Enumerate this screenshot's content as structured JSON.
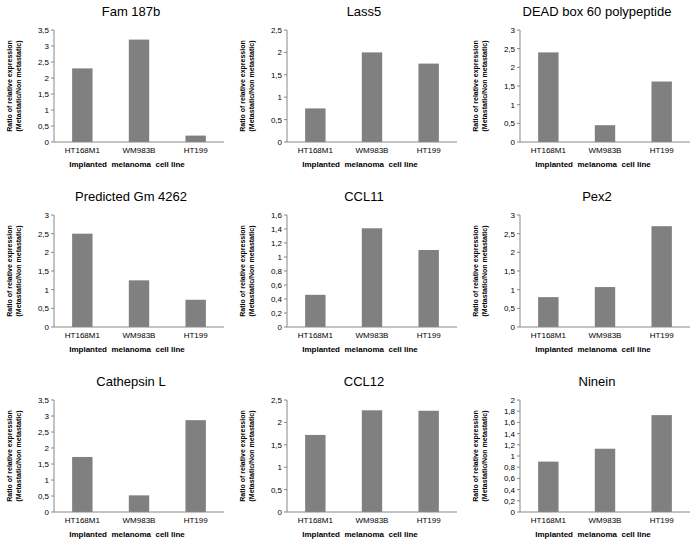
{
  "chart_data": [
    {
      "type": "bar",
      "title": "Fam 187b",
      "categories": [
        "HT168M1",
        "WM983B",
        "HT199"
      ],
      "values": [
        2.3,
        3.2,
        0.2
      ],
      "color": "#808080",
      "ylim": [
        0,
        3.5
      ],
      "yticks": [
        0,
        {
          "value": 0.5,
          "label": "0,5"
        },
        1,
        {
          "value": 1.5,
          "label": "1,5"
        },
        2,
        {
          "value": 2.5,
          "label": "2,5"
        },
        3,
        {
          "value": 3.5,
          "label": "3,5"
        }
      ],
      "grid": false,
      "x_label": "Implanted  melanoma  cell line",
      "y_label": "Ratio of relative expression\n(Metastatic/Non metastatic)"
    },
    {
      "type": "bar",
      "title": "Lass5",
      "categories": [
        "HT168M1",
        "WM983B",
        "HT199"
      ],
      "values": [
        0.75,
        2.0,
        1.75
      ],
      "color": "#808080",
      "ylim": [
        0,
        2.5
      ],
      "yticks": [
        0,
        {
          "value": 0.5,
          "label": "0,5"
        },
        1,
        {
          "value": 1.5,
          "label": "1,5"
        },
        2,
        {
          "value": 2.5,
          "label": "2,5"
        }
      ],
      "grid": false,
      "x_label": "Implanted  melanoma  cell line",
      "y_label": "Ratio of relative expression\n(Metastatic/Non metastatic)"
    },
    {
      "type": "bar",
      "title": "DEAD box 60 polypeptide",
      "categories": [
        "HT168M1",
        "WM983B",
        "HT199"
      ],
      "values": [
        2.4,
        0.45,
        1.62
      ],
      "color": "#808080",
      "ylim": [
        0,
        3
      ],
      "yticks": [
        0,
        {
          "value": 0.5,
          "label": "0,5"
        },
        1,
        {
          "value": 1.5,
          "label": "1,5"
        },
        2,
        {
          "value": 2.5,
          "label": "2,5"
        },
        3
      ],
      "grid": false,
      "x_label": "Implanted  melanoma  cell line",
      "y_label": "Ratio of relative expression\n(Metastatic/Non metastatic)"
    },
    {
      "type": "bar",
      "title": "Predicted Gm 4262",
      "categories": [
        "HT168M1",
        "WM983B",
        "HT199"
      ],
      "values": [
        2.5,
        1.25,
        0.73
      ],
      "color": "#808080",
      "ylim": [
        0,
        3
      ],
      "yticks": [
        0,
        {
          "value": 0.5,
          "label": "0,5"
        },
        1,
        {
          "value": 1.5,
          "label": "1,5"
        },
        2,
        {
          "value": 2.5,
          "label": "2,5"
        },
        3
      ],
      "grid": false,
      "x_label": "Implanted  melanoma  cell line",
      "y_label": "Ratio of relative expression\n(Metastatic/Non metastatic)"
    },
    {
      "type": "bar",
      "title": "CCL11",
      "categories": [
        "HT168M1",
        "WM983B",
        "HT199"
      ],
      "values": [
        0.46,
        1.41,
        1.1
      ],
      "color": "#808080",
      "ylim": [
        0,
        1.6
      ],
      "yticks": [
        0,
        {
          "value": 0.2,
          "label": "0,2"
        },
        {
          "value": 0.4,
          "label": "0,4"
        },
        {
          "value": 0.6,
          "label": "0,6"
        },
        {
          "value": 0.8,
          "label": "0,8"
        },
        1,
        {
          "value": 1.2,
          "label": "1,2"
        },
        {
          "value": 1.4,
          "label": "1,4"
        },
        {
          "value": 1.6,
          "label": "1,6"
        }
      ],
      "grid": false,
      "x_label": "Implanted  melanoma  cell line",
      "y_label": "Ratio of relative expression\n(Metastatic/Non metastatic)"
    },
    {
      "type": "bar",
      "title": "Pex2",
      "categories": [
        "HT168M1",
        "WM983B",
        "HT199"
      ],
      "values": [
        0.8,
        1.07,
        2.7
      ],
      "color": "#808080",
      "ylim": [
        0,
        3
      ],
      "yticks": [
        0,
        {
          "value": 0.5,
          "label": "0,5"
        },
        1,
        {
          "value": 1.5,
          "label": "1,5"
        },
        2,
        {
          "value": 2.5,
          "label": "2,5"
        },
        3
      ],
      "grid": false,
      "x_label": "Implanted  melanoma  cell line",
      "y_label": "Ratio of relative expression\n(Metastatic/Non metastatic)"
    },
    {
      "type": "bar",
      "title": "Cathepsin L",
      "categories": [
        "HT168M1",
        "WM983B",
        "HT199"
      ],
      "values": [
        1.72,
        0.52,
        2.87
      ],
      "color": "#808080",
      "ylim": [
        0,
        3.5
      ],
      "yticks": [
        0,
        {
          "value": 0.5,
          "label": "0,5"
        },
        1,
        {
          "value": 1.5,
          "label": "1,5"
        },
        2,
        {
          "value": 2.5,
          "label": "2,5"
        },
        3,
        {
          "value": 3.5,
          "label": "3,5"
        }
      ],
      "grid": false,
      "x_label": "Implanted  melanoma  cell line",
      "y_label": "Ratio of relative expression\n(Metastatic/Non metastatic)"
    },
    {
      "type": "bar",
      "title": "CCL12",
      "categories": [
        "HT168M1",
        "WM983B",
        "HT199"
      ],
      "values": [
        1.72,
        2.27,
        2.26
      ],
      "color": "#808080",
      "ylim": [
        0,
        2.5
      ],
      "yticks": [
        0,
        {
          "value": 0.5,
          "label": "0,5"
        },
        1,
        {
          "value": 1.5,
          "label": "1,5"
        },
        2,
        {
          "value": 2.5,
          "label": "2,5"
        }
      ],
      "grid": false,
      "x_label": "Implanted  melanoma  cell line",
      "y_label": "Ratio of relative expression\n(Metastatic/Non metastatic)"
    },
    {
      "type": "bar",
      "title": "Ninein",
      "categories": [
        "HT168M1",
        "WM983B",
        "HT199"
      ],
      "values": [
        0.9,
        1.13,
        1.73
      ],
      "color": "#808080",
      "ylim": [
        0,
        2
      ],
      "yticks": [
        0,
        {
          "value": 0.2,
          "label": "0,2"
        },
        {
          "value": 0.4,
          "label": "0,4"
        },
        {
          "value": 0.6,
          "label": "0,6"
        },
        {
          "value": 0.8,
          "label": "0,8"
        },
        1,
        {
          "value": 1.2,
          "label": "1,2"
        },
        {
          "value": 1.4,
          "label": "1,4"
        },
        {
          "value": 1.6,
          "label": "1,6"
        },
        {
          "value": 1.8,
          "label": "1,8"
        },
        2
      ],
      "grid": false,
      "x_label": "Implanted  melanoma  cell line",
      "y_label": "Ratio of relative expression\n(Metastatic/Non metastatic)"
    }
  ]
}
